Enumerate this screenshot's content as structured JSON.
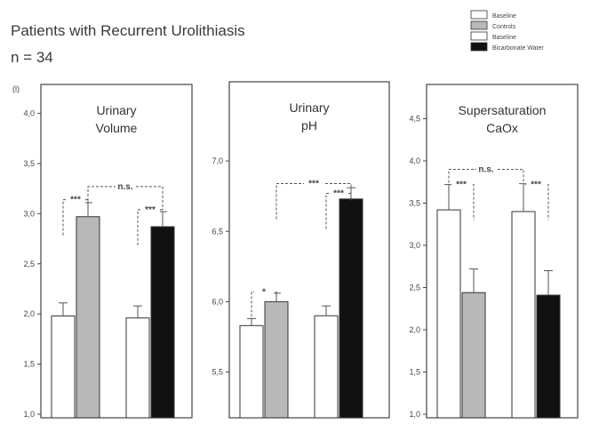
{
  "figure": {
    "title_line1": "Patients with Recurrent Urolithiasis",
    "title_line2": "n = 34",
    "unit_label": "(l)"
  },
  "legend": [
    {
      "label": "Baseline",
      "color": "#ffffff"
    },
    {
      "label": "Controls",
      "color": "#b8b8b8"
    },
    {
      "label": "Baseline",
      "color": "#ffffff"
    },
    {
      "label": "Bicarbonate Water",
      "color": "#111111"
    }
  ],
  "chart_data": [
    {
      "type": "bar",
      "title_lines": [
        "Urinary",
        "Volume"
      ],
      "ylim": [
        1.0,
        4.2
      ],
      "ticks": [
        "1,0",
        "1,5",
        "2,0",
        "2,5",
        "3,0",
        "3,5",
        "4,0"
      ],
      "tick_values": [
        1.0,
        1.5,
        2.0,
        2.5,
        3.0,
        3.5,
        4.0
      ],
      "categories": [
        "Baseline",
        "Controls",
        "Baseline",
        "Bicarbonate Water"
      ],
      "values": [
        1.98,
        2.97,
        1.96,
        2.87
      ],
      "errors": [
        0.13,
        0.14,
        0.12,
        0.15
      ],
      "colors": [
        "#ffffff",
        "#b8b8b8",
        "#ffffff",
        "#111111"
      ],
      "significance": [
        {
          "from": 0,
          "to": 1,
          "label": "***",
          "y": 3.14
        },
        {
          "from": 2,
          "to": 3,
          "label": "***",
          "y": 3.04
        },
        {
          "from": 1,
          "to": 3,
          "label": "n.s.",
          "y": 3.27
        }
      ]
    },
    {
      "type": "bar",
      "title_lines": [
        "Urinary",
        "pH"
      ],
      "ylim": [
        5.2,
        7.5
      ],
      "ticks": [
        "5,5",
        "6,0",
        "6,5",
        "7,0"
      ],
      "tick_values": [
        5.5,
        6.0,
        6.5,
        7.0
      ],
      "categories": [
        "Baseline",
        "Controls",
        "Baseline",
        "Bicarbonate Water"
      ],
      "values": [
        5.83,
        6.0,
        5.9,
        6.73
      ],
      "errors": [
        0.05,
        0.06,
        0.07,
        0.08
      ],
      "colors": [
        "#ffffff",
        "#b8b8b8",
        "#ffffff",
        "#111111"
      ],
      "significance": [
        {
          "from": 0,
          "to": 1,
          "label": "*",
          "y": 6.07
        },
        {
          "from": 2,
          "to": 3,
          "label": "***",
          "y": 6.77
        },
        {
          "from": 1,
          "to": 3,
          "label": "***",
          "y": 6.84
        }
      ]
    },
    {
      "type": "bar",
      "title_lines": [
        "Supersaturation",
        "CaOx"
      ],
      "ylim": [
        1.0,
        4.8
      ],
      "ticks": [
        "1,0",
        "1,5",
        "2,0",
        "2,5",
        "3,0",
        "3,5",
        "4,0",
        "4,5"
      ],
      "tick_values": [
        1.0,
        1.5,
        2.0,
        2.5,
        3.0,
        3.5,
        4.0,
        4.5
      ],
      "categories": [
        "Baseline",
        "Controls",
        "Baseline",
        "Bicarbonate Water"
      ],
      "values": [
        3.42,
        2.44,
        3.4,
        2.41
      ],
      "errors": [
        0.3,
        0.28,
        0.33,
        0.29
      ],
      "colors": [
        "#ffffff",
        "#b8b8b8",
        "#ffffff",
        "#111111"
      ],
      "significance": [
        {
          "from": 0,
          "to": 1,
          "label": "***",
          "y": 3.72
        },
        {
          "from": 2,
          "to": 3,
          "label": "***",
          "y": 3.72
        },
        {
          "from": 0,
          "to": 2,
          "label": "n.s.",
          "y": 3.9
        }
      ]
    }
  ]
}
